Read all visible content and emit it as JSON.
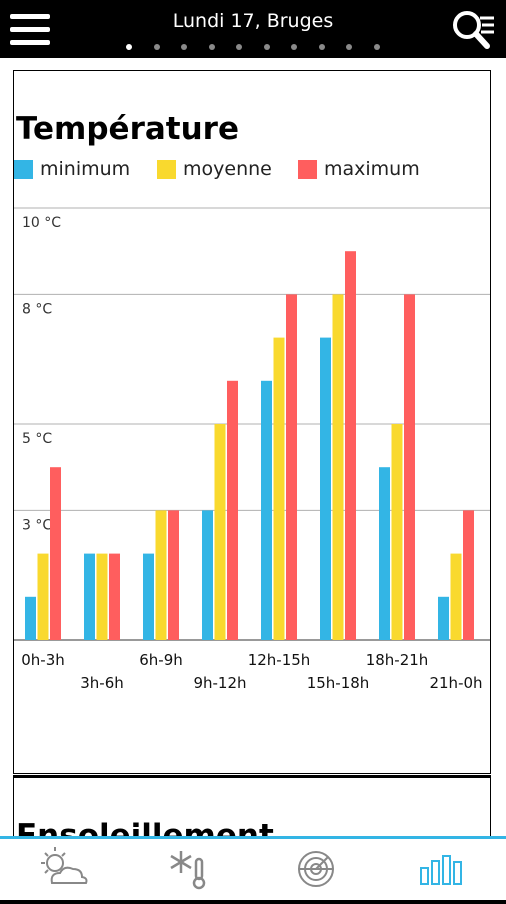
{
  "header": {
    "title": "Lundi 17, Bruges",
    "page_count": 10,
    "active_page": 1
  },
  "card1": {
    "title": "Température"
  },
  "card2": {
    "title": "Ensoleillement"
  },
  "legend": [
    {
      "label": "minimum",
      "color": "#33b5e5"
    },
    {
      "label": "moyenne",
      "color": "#f9d92e"
    },
    {
      "label": "maximum",
      "color": "#ff5e5e"
    }
  ],
  "chart_data": {
    "type": "bar",
    "title": "Température",
    "categories": [
      "0h-3h",
      "3h-6h",
      "6h-9h",
      "9h-12h",
      "12h-15h",
      "15h-18h",
      "18h-21h",
      "21h-0h"
    ],
    "series": [
      {
        "name": "minimum",
        "color": "#33b5e5",
        "values": [
          1,
          2,
          2,
          3,
          6,
          7,
          4,
          1
        ]
      },
      {
        "name": "moyenne",
        "color": "#f9d92e",
        "values": [
          2,
          2,
          3,
          5,
          7,
          8,
          5,
          2
        ]
      },
      {
        "name": "maximum",
        "color": "#ff5e5e",
        "values": [
          4,
          2,
          3,
          6,
          8,
          9,
          8,
          3
        ]
      }
    ],
    "y_ticks": [
      {
        "value": 10,
        "label": "10 °C"
      },
      {
        "value": 8,
        "label": "8 °C"
      },
      {
        "value": 5,
        "label": "5 °C"
      },
      {
        "value": 3,
        "label": "3 °C"
      }
    ],
    "ylim": [
      0,
      10
    ],
    "grid": true,
    "legend_position": "top-left"
  },
  "tabs": [
    {
      "name": "weather",
      "icon": "sun-cloud-icon",
      "active": false
    },
    {
      "name": "frost",
      "icon": "snowflake-thermometer-icon",
      "active": false
    },
    {
      "name": "radar",
      "icon": "radar-icon",
      "active": false
    },
    {
      "name": "charts",
      "icon": "bar-chart-icon",
      "active": true
    }
  ],
  "colors": {
    "accent": "#33b5e5",
    "inactive_icon": "#888888"
  }
}
